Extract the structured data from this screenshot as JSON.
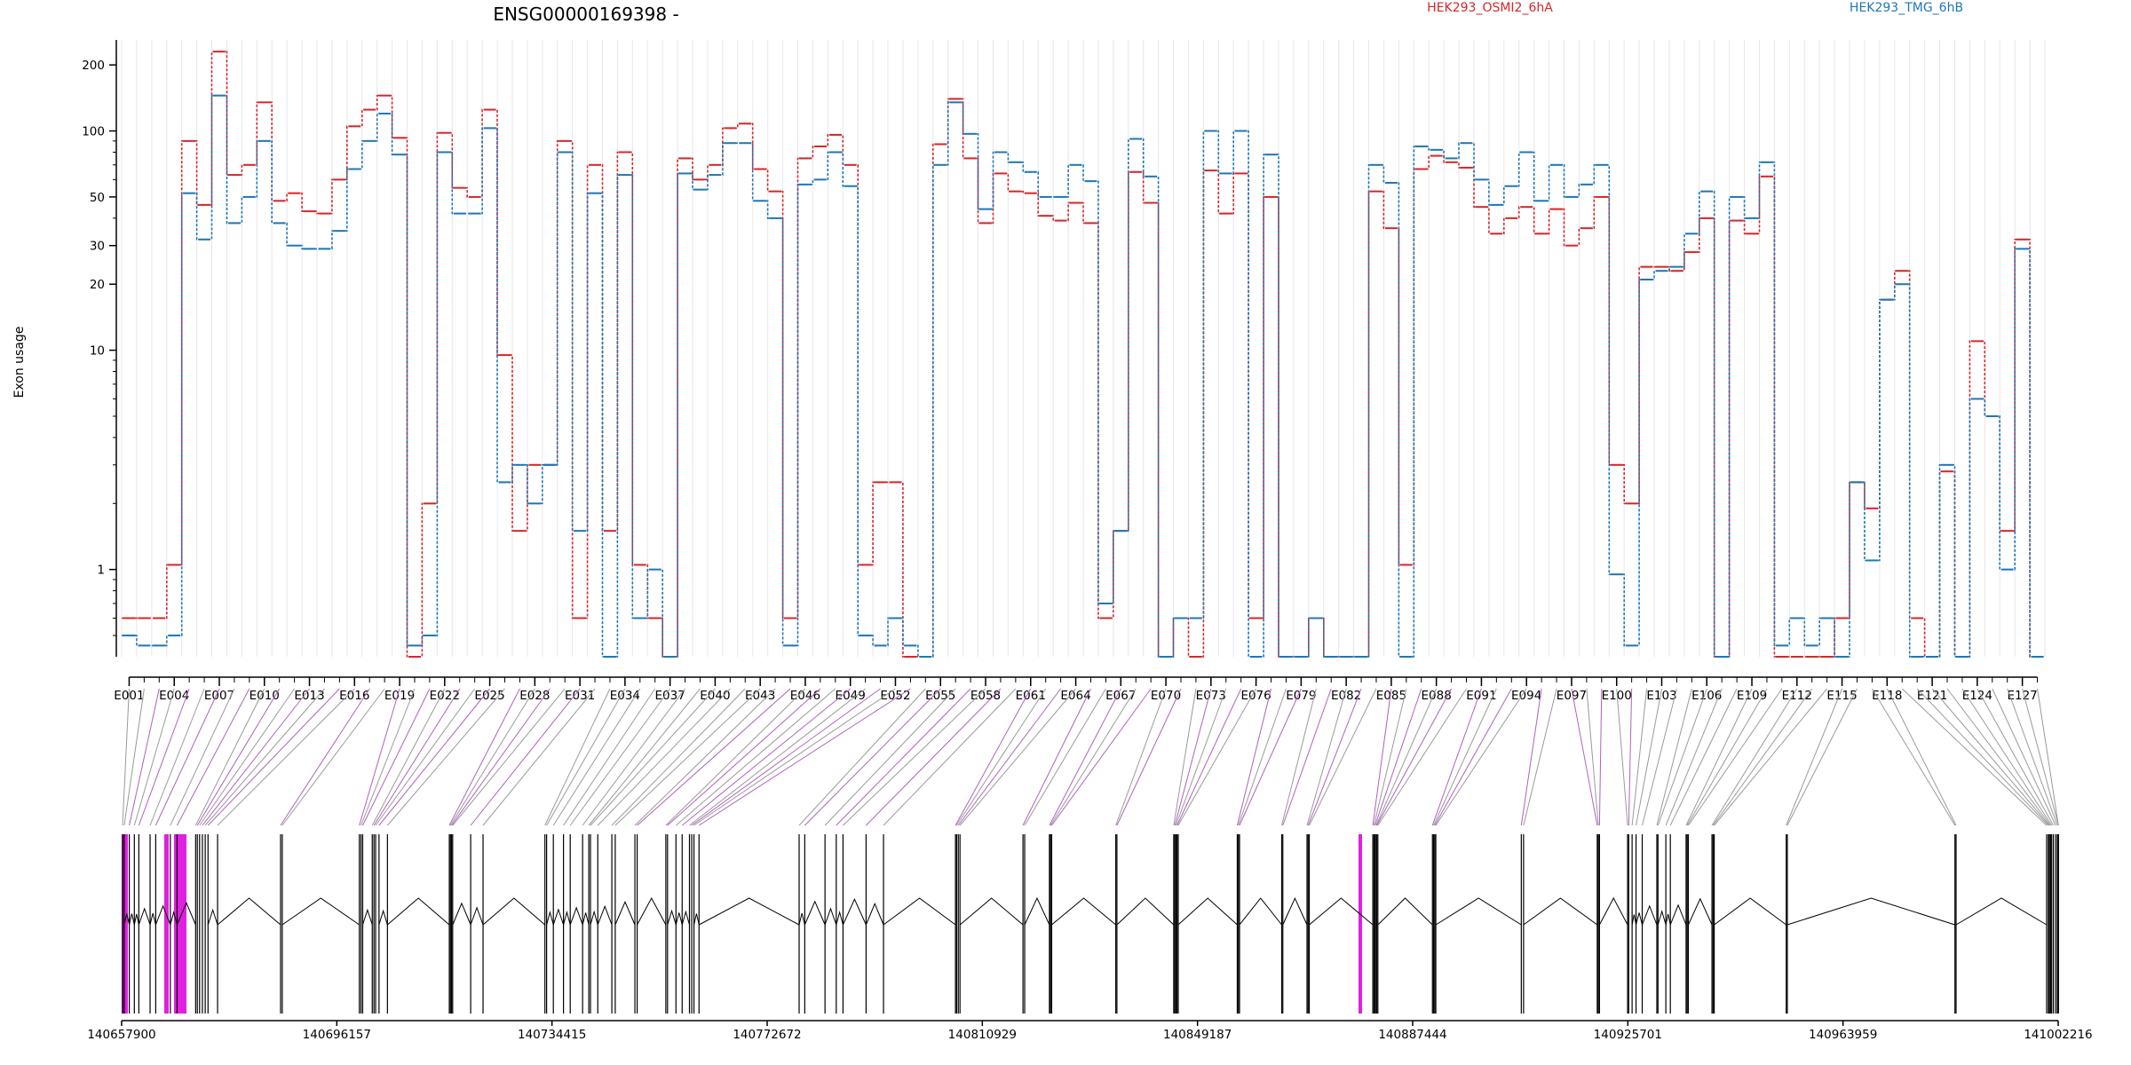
{
  "chart_data": {
    "type": "line",
    "title": "ENSG00000169398 -",
    "ylabel": "Exon usage",
    "yscale": "log",
    "ylim": [
      0.4,
      260
    ],
    "yticks": [
      1,
      10,
      20,
      30,
      50,
      100,
      200
    ],
    "grid": "vertical lines at every exon",
    "legend_position": "top",
    "colors": {
      "HEK293_OSMI2_6hA": "#d62728",
      "HEK293_TMG_6hB": "#1f77b4",
      "highlight": "#e020e0"
    },
    "exon_labels": [
      "E001",
      "E004",
      "E007",
      "E010",
      "E013",
      "E016",
      "E019",
      "E022",
      "E025",
      "E028",
      "E031",
      "E034",
      "E037",
      "E040",
      "E043",
      "E046",
      "E049",
      "E052",
      "E055",
      "E058",
      "E061",
      "E064",
      "E067",
      "E070",
      "E073",
      "E076",
      "E079",
      "E082",
      "E085",
      "E088",
      "E091",
      "E094",
      "E097",
      "E100",
      "E103",
      "E106",
      "E109",
      "E112",
      "E115",
      "E118",
      "E121",
      "E124",
      "E127"
    ],
    "genome_ticks": [
      "140657900",
      "140696157",
      "140734415",
      "140772672",
      "140810929",
      "140849187",
      "140887444",
      "140925701",
      "140963959",
      "141002216"
    ],
    "genome_range": [
      140657900,
      141002216
    ],
    "series": [
      {
        "name": "HEK293_OSMI2_6hA",
        "values": [
          0.6,
          0.6,
          0.6,
          1.05,
          90,
          46,
          230,
          63,
          70,
          135,
          48,
          52,
          43,
          42,
          60,
          105,
          125,
          145,
          93,
          0.4,
          2,
          98,
          55,
          50,
          125,
          9.5,
          1.5,
          3,
          3,
          90,
          0.6,
          70,
          1.5,
          80,
          1.05,
          0.6,
          0.4,
          75,
          60,
          70,
          103,
          108,
          67,
          53,
          0.6,
          75,
          85,
          96,
          70,
          1.05,
          2.5,
          2.5,
          0.4,
          0.4,
          87,
          140,
          75,
          38,
          64,
          53,
          52,
          41,
          39,
          47,
          38,
          0.6,
          1.5,
          65,
          47,
          0.4,
          0.6,
          0.4,
          66,
          42,
          64,
          0.6,
          50,
          0.4,
          0.4,
          0.6,
          0.4,
          0.4,
          0.4,
          53,
          36,
          1.05,
          67,
          77,
          72,
          68,
          45,
          34,
          40,
          45,
          34,
          44,
          30,
          36,
          50,
          3,
          2,
          24,
          24,
          23,
          28,
          40,
          0.4,
          39,
          34,
          62,
          0.4,
          0.4,
          0.4,
          0.4,
          0.6,
          2.5,
          1.9,
          17,
          23,
          0.6,
          0.4,
          2.8,
          0.4,
          11,
          5,
          1.5,
          32,
          0.4
        ]
      },
      {
        "name": "HEK293_TMG_6hB",
        "values": [
          0.5,
          0.45,
          0.45,
          0.5,
          52,
          32,
          145,
          38,
          50,
          90,
          38,
          30,
          29,
          29,
          35,
          67,
          90,
          120,
          78,
          0.45,
          0.5,
          80,
          42,
          42,
          103,
          2.5,
          3,
          2,
          3,
          80,
          1.5,
          52,
          0.4,
          63,
          0.6,
          1.0,
          0.4,
          64,
          54,
          63,
          88,
          88,
          48,
          40,
          0.45,
          57,
          60,
          80,
          56,
          0.5,
          0.45,
          0.6,
          0.45,
          0.4,
          70,
          135,
          97,
          44,
          80,
          72,
          65,
          50,
          50,
          70,
          59,
          0.7,
          1.5,
          92,
          62,
          0.4,
          0.6,
          0.6,
          100,
          64,
          100,
          0.4,
          78,
          0.4,
          0.4,
          0.6,
          0.4,
          0.4,
          0.4,
          70,
          58,
          0.4,
          85,
          82,
          75,
          88,
          60,
          46,
          56,
          80,
          48,
          70,
          50,
          57,
          70,
          0.95,
          0.45,
          21,
          23,
          24,
          34,
          53,
          0.4,
          50,
          40,
          72,
          0.45,
          0.6,
          0.45,
          0.6,
          0.4,
          2.5,
          1.1,
          17,
          20,
          0.4,
          0.4,
          3,
          0.4,
          6,
          5,
          1.0,
          29,
          0.4
        ]
      }
    ]
  }
}
